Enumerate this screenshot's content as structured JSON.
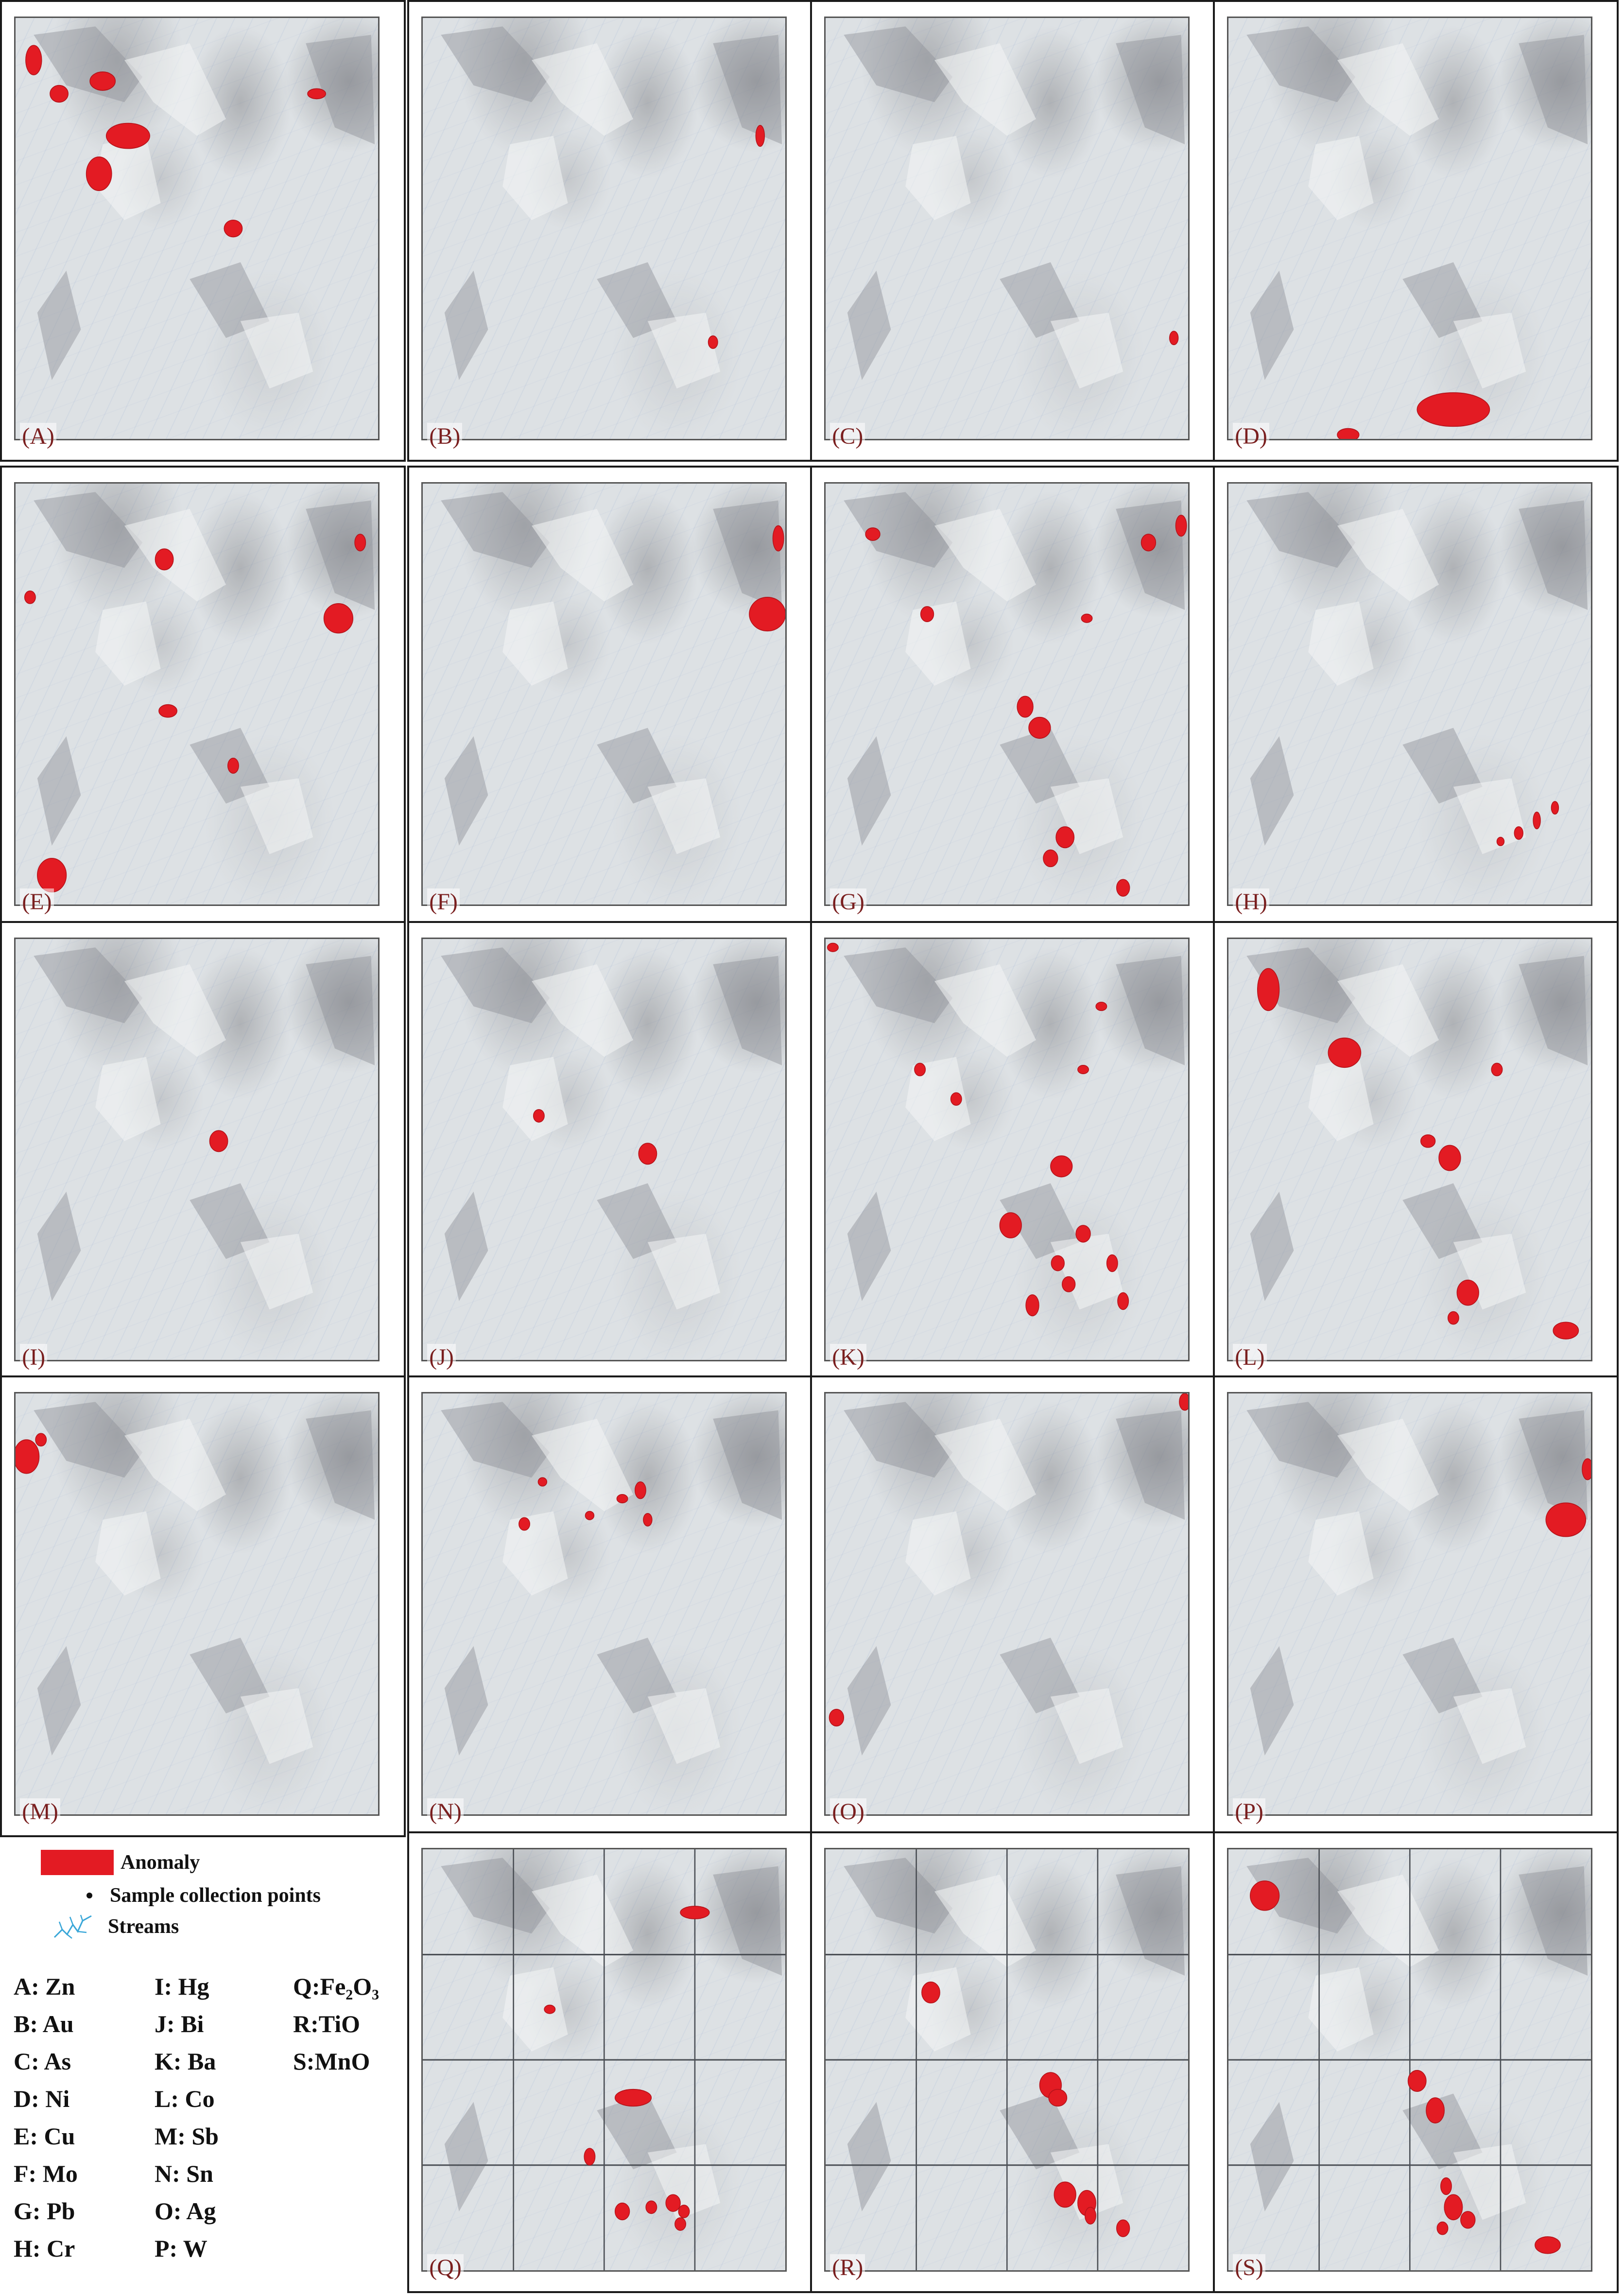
{
  "panels": [
    {
      "label": "(A)",
      "anomalies": [
        [
          5,
          10,
          2.2,
          3.5
        ],
        [
          12,
          18,
          2.5,
          2
        ],
        [
          24,
          15,
          3.5,
          2.2
        ],
        [
          31,
          28,
          6,
          3
        ],
        [
          23,
          37,
          3.5,
          4
        ],
        [
          60,
          50,
          2.5,
          2
        ],
        [
          83,
          18,
          2.5,
          1.2
        ]
      ]
    },
    {
      "label": "(B)",
      "anomalies": [
        [
          93,
          28,
          1.2,
          2.5
        ],
        [
          80,
          77,
          1.3,
          1.5
        ]
      ]
    },
    {
      "label": "(C)",
      "anomalies": [
        [
          96,
          76,
          1.2,
          1.6
        ]
      ]
    },
    {
      "label": "(D)",
      "anomalies": [
        [
          62,
          93,
          10,
          4
        ],
        [
          33,
          99,
          3,
          1.5
        ]
      ]
    },
    {
      "label": "(E)",
      "anomalies": [
        [
          41,
          18,
          2.5,
          2.5
        ],
        [
          4,
          27,
          1.5,
          1.5
        ],
        [
          95,
          14,
          1.5,
          2
        ],
        [
          89,
          32,
          4,
          3.5
        ],
        [
          42,
          54,
          2.5,
          1.5
        ],
        [
          60,
          67,
          1.5,
          1.8
        ],
        [
          10,
          93,
          4,
          4
        ]
      ]
    },
    {
      "label": "(F)",
      "anomalies": [
        [
          98,
          13,
          1.5,
          3
        ],
        [
          95,
          31,
          5,
          4
        ]
      ]
    },
    {
      "label": "(G)",
      "anomalies": [
        [
          13,
          12,
          2,
          1.5
        ],
        [
          89,
          14,
          2,
          2
        ],
        [
          98,
          10,
          1.5,
          2.5
        ],
        [
          28,
          31,
          1.8,
          1.8
        ],
        [
          72,
          32,
          1.5,
          1
        ],
        [
          55,
          53,
          2.2,
          2.5
        ],
        [
          59,
          58,
          3,
          2.5
        ],
        [
          66,
          84,
          2.5,
          2.5
        ],
        [
          62,
          89,
          2,
          2
        ],
        [
          82,
          96,
          1.8,
          2
        ]
      ]
    },
    {
      "label": "(H)",
      "anomalies": [
        [
          75,
          85,
          1,
          1
        ],
        [
          80,
          83,
          1.2,
          1.5
        ],
        [
          85,
          80,
          1,
          2
        ],
        [
          90,
          77,
          1,
          1.5
        ]
      ]
    },
    {
      "label": "(I)",
      "anomalies": [
        [
          56,
          48,
          2.5,
          2.5
        ]
      ]
    },
    {
      "label": "(J)",
      "anomalies": [
        [
          32,
          42,
          1.5,
          1.5
        ],
        [
          62,
          51,
          2.5,
          2.5
        ]
      ]
    },
    {
      "label": "(K)",
      "anomalies": [
        [
          2,
          2,
          1.5,
          1
        ],
        [
          26,
          31,
          1.5,
          1.5
        ],
        [
          36,
          38,
          1.5,
          1.5
        ],
        [
          76,
          16,
          1.5,
          1
        ],
        [
          71,
          31,
          1.5,
          1
        ],
        [
          65,
          54,
          3,
          2.5
        ],
        [
          51,
          68,
          3,
          3
        ],
        [
          71,
          70,
          2,
          2
        ],
        [
          64,
          77,
          1.8,
          1.8
        ],
        [
          79,
          77,
          1.5,
          2
        ],
        [
          67,
          82,
          1.8,
          1.8
        ],
        [
          57,
          87,
          1.8,
          2.5
        ],
        [
          82,
          86,
          1.5,
          2
        ]
      ]
    },
    {
      "label": "(L)",
      "anomalies": [
        [
          11,
          12,
          3,
          5
        ],
        [
          32,
          27,
          4.5,
          3.5
        ],
        [
          74,
          31,
          1.5,
          1.5
        ],
        [
          55,
          48,
          2,
          1.5
        ],
        [
          61,
          52,
          3,
          3
        ],
        [
          66,
          84,
          3,
          3
        ],
        [
          62,
          90,
          1.5,
          1.5
        ],
        [
          93,
          93,
          3.5,
          2
        ]
      ]
    },
    {
      "label": "(M)",
      "anomalies": [
        [
          3,
          15,
          3.5,
          4
        ],
        [
          7,
          11,
          1.5,
          1.5
        ]
      ]
    },
    {
      "label": "(N)",
      "anomalies": [
        [
          28,
          31,
          1.5,
          1.5
        ],
        [
          33,
          21,
          1.2,
          1
        ],
        [
          46,
          29,
          1.2,
          1
        ],
        [
          55,
          25,
          1.5,
          1
        ],
        [
          60,
          23,
          1.5,
          2
        ],
        [
          62,
          30,
          1.2,
          1.5
        ]
      ]
    },
    {
      "label": "(O)",
      "anomalies": [
        [
          3,
          77,
          2,
          2
        ],
        [
          99,
          2,
          1.5,
          2
        ]
      ]
    },
    {
      "label": "(P)",
      "anomalies": [
        [
          99,
          18,
          1.5,
          2.5
        ],
        [
          93,
          30,
          5.5,
          4
        ]
      ]
    },
    {
      "label": "(Q)",
      "anomalies": [
        [
          75,
          15,
          4,
          1.5
        ],
        [
          35,
          38,
          1.5,
          1
        ],
        [
          58,
          59,
          5,
          2
        ],
        [
          46,
          73,
          1.5,
          2
        ],
        [
          69,
          84,
          2,
          2
        ],
        [
          72,
          86,
          1.5,
          1.5
        ],
        [
          63,
          85,
          1.5,
          1.5
        ],
        [
          71,
          89,
          1.5,
          1.5
        ],
        [
          55,
          86,
          2,
          2
        ]
      ]
    },
    {
      "label": "(R)",
      "anomalies": [
        [
          29,
          34,
          2.5,
          2.5
        ],
        [
          62,
          56,
          3,
          3
        ],
        [
          64,
          59,
          2.5,
          2
        ],
        [
          66,
          82,
          3,
          3
        ],
        [
          72,
          84,
          2.5,
          3
        ],
        [
          82,
          90,
          1.8,
          2
        ],
        [
          73,
          87,
          1.5,
          2
        ]
      ]
    },
    {
      "label": "(S)",
      "anomalies": [
        [
          10,
          11,
          4,
          3.5
        ],
        [
          52,
          55,
          2.5,
          2.5
        ],
        [
          57,
          62,
          2.5,
          3
        ],
        [
          62,
          85,
          2.5,
          3
        ],
        [
          66,
          88,
          2,
          2
        ],
        [
          59,
          90,
          1.5,
          1.5
        ],
        [
          88,
          94,
          3.5,
          2
        ],
        [
          60,
          80,
          1.5,
          2
        ]
      ]
    }
  ],
  "legend": {
    "anomaly": "Anomaly",
    "samples": "Sample collection points",
    "streams": "Streams"
  },
  "element_key": [
    [
      "A: Zn",
      "I: Hg",
      "Q:Fe₂O₃"
    ],
    [
      "B: Au",
      "J: Bi",
      "R:TiO"
    ],
    [
      "C: As",
      "K: Ba",
      "S:MnO"
    ],
    [
      "D: Ni",
      "L: Co",
      ""
    ],
    [
      "E: Cu",
      "M: Sb",
      ""
    ],
    [
      "F: Mo",
      "N: Sn",
      ""
    ],
    [
      "G: Pb",
      "O: Ag",
      ""
    ],
    [
      "H: Cr",
      "P: W",
      ""
    ]
  ],
  "colors": {
    "anomaly": "#e31b23",
    "stream": "#3aa7d8",
    "label": "#7a1f1f"
  }
}
